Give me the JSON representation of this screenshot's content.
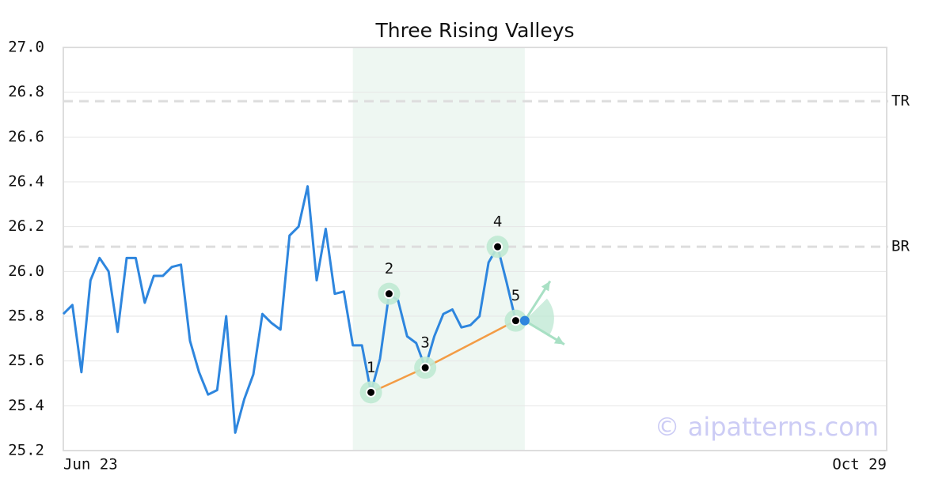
{
  "chart_data": {
    "type": "line",
    "title": "Three Rising Valleys",
    "x": [
      0,
      1,
      2,
      3,
      4,
      5,
      6,
      7,
      8,
      9,
      10,
      11,
      12,
      13,
      14,
      15,
      16,
      17,
      18,
      19,
      20,
      21,
      22,
      23,
      24,
      25,
      26,
      27,
      28,
      29,
      30,
      31,
      32,
      33,
      34,
      35,
      36,
      37,
      38,
      39,
      40,
      41,
      42,
      43,
      44,
      45,
      46,
      47,
      48,
      49,
      50
    ],
    "values": [
      25.81,
      25.85,
      25.55,
      25.96,
      26.06,
      26.0,
      25.73,
      26.06,
      26.06,
      25.86,
      25.98,
      25.98,
      26.02,
      26.03,
      25.69,
      25.55,
      25.45,
      25.47,
      25.8,
      25.28,
      25.43,
      25.54,
      25.81,
      25.77,
      25.74,
      26.16,
      26.2,
      26.38,
      25.96,
      26.19,
      25.9,
      25.91,
      25.67,
      25.67,
      25.46,
      25.61,
      25.9,
      25.87,
      25.71,
      25.68,
      25.57,
      25.71,
      25.81,
      25.83,
      25.75,
      25.76,
      25.8,
      26.04,
      26.11,
      25.95,
      25.78
    ],
    "color": "#2e86de",
    "xlim": [
      0,
      91
    ],
    "xticks": [
      {
        "value": 0,
        "label": "Jun 23"
      },
      {
        "value": 91,
        "label": "Oct 29"
      }
    ],
    "ylim": [
      25.2,
      27.0
    ],
    "yticks": [
      25.2,
      25.4,
      25.6,
      25.8,
      {
        "value": 26.0,
        "label": "26.0"
      },
      26.2,
      26.4,
      26.6,
      26.8,
      {
        "value": 27.0,
        "label": "27.0"
      }
    ],
    "grid": true,
    "levels": [
      {
        "label": "TR",
        "value": 26.76
      },
      {
        "label": "BR",
        "value": 26.11
      }
    ],
    "highlight_range": [
      32,
      51
    ],
    "pattern_points": [
      {
        "label": "1",
        "x": 34,
        "value": 25.46
      },
      {
        "label": "2",
        "x": 36,
        "value": 25.9
      },
      {
        "label": "3",
        "x": 40,
        "value": 25.57
      },
      {
        "label": "4",
        "x": 48,
        "value": 26.11
      },
      {
        "label": "5",
        "x": 50,
        "value": 25.78
      }
    ],
    "trend_color": "#f39c45",
    "projection": {
      "x": 51,
      "value": 25.78
    },
    "watermark": "© aipatterns.com"
  }
}
